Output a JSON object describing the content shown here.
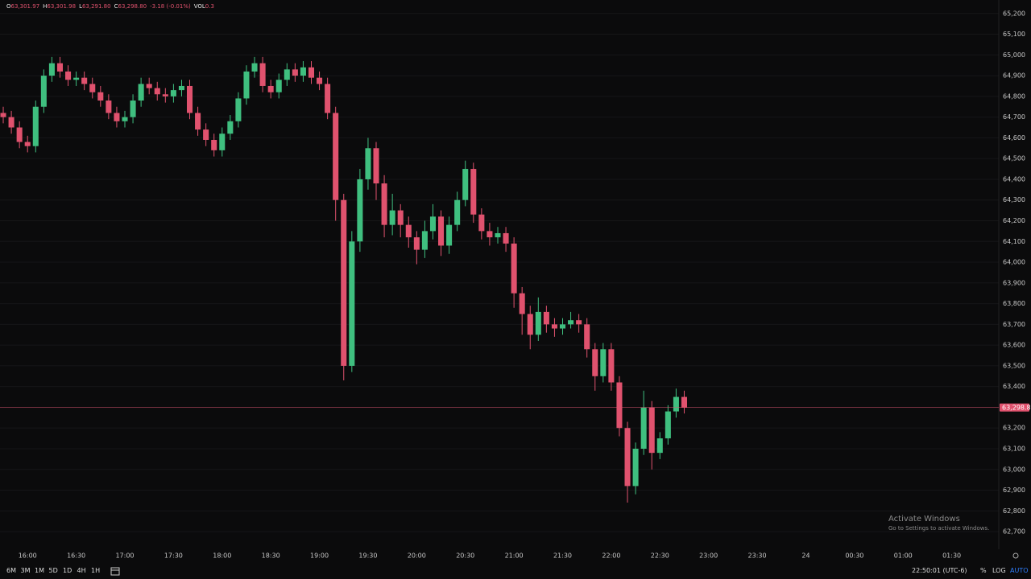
{
  "header": [
    {
      "key": "O",
      "value": "63,301.97"
    },
    {
      "key": "H",
      "value": "63,301.98"
    },
    {
      "key": "L",
      "value": "63,291.80"
    },
    {
      "key": "C",
      "value": "63,298.80"
    },
    {
      "key": "",
      "value": "-3.18 (-0.01%)"
    },
    {
      "key": "VOL",
      "value": "0.3"
    }
  ],
  "toolbar": {
    "ranges": [
      "6M",
      "3M",
      "1M",
      "5D",
      "1D",
      "4H",
      "1H"
    ],
    "clock": "22:50:01 (UTC-6)",
    "options": [
      "%",
      "LOG",
      "AUTO"
    ]
  },
  "watermark": {
    "title": "Activate Windows",
    "subtitle": "Go to Settings to activate Windows."
  },
  "chart_data": {
    "type": "candlestick",
    "up_color": "#3fbf7f",
    "down_color": "#e0526e",
    "grid": true,
    "last_price": {
      "value": 63298.8,
      "label": "63,298.80"
    },
    "xlim": [
      943,
      1559
    ],
    "ylim": [
      62615,
      65265
    ],
    "xticks": [
      {
        "value": 960,
        "label": "16:00"
      },
      {
        "value": 990,
        "label": "16:30"
      },
      {
        "value": 1020,
        "label": "17:00"
      },
      {
        "value": 1050,
        "label": "17:30"
      },
      {
        "value": 1080,
        "label": "18:00"
      },
      {
        "value": 1110,
        "label": "18:30"
      },
      {
        "value": 1140,
        "label": "19:00"
      },
      {
        "value": 1170,
        "label": "19:30"
      },
      {
        "value": 1200,
        "label": "20:00"
      },
      {
        "value": 1230,
        "label": "20:30"
      },
      {
        "value": 1260,
        "label": "21:00"
      },
      {
        "value": 1290,
        "label": "21:30"
      },
      {
        "value": 1320,
        "label": "22:00"
      },
      {
        "value": 1350,
        "label": "22:30"
      },
      {
        "value": 1380,
        "label": "23:00"
      },
      {
        "value": 1410,
        "label": "23:30"
      },
      {
        "value": 1440,
        "label": "24"
      },
      {
        "value": 1470,
        "label": "00:30"
      },
      {
        "value": 1500,
        "label": "01:00"
      },
      {
        "value": 1530,
        "label": "01:30"
      }
    ],
    "yticks": [
      {
        "value": 62700,
        "label": "62,700"
      },
      {
        "value": 62800,
        "label": "62,800"
      },
      {
        "value": 62900,
        "label": "62,900"
      },
      {
        "value": 63000,
        "label": "63,000"
      },
      {
        "value": 63100,
        "label": "63,100"
      },
      {
        "value": 63200,
        "label": "63,200"
      },
      {
        "value": 63300,
        "label": "63,300"
      },
      {
        "value": 63400,
        "label": "63,400"
      },
      {
        "value": 63500,
        "label": "63,500"
      },
      {
        "value": 63600,
        "label": "63,600"
      },
      {
        "value": 63700,
        "label": "63,700"
      },
      {
        "value": 63800,
        "label": "63,800"
      },
      {
        "value": 63900,
        "label": "63,900"
      },
      {
        "value": 64000,
        "label": "64,000"
      },
      {
        "value": 64100,
        "label": "64,100"
      },
      {
        "value": 64200,
        "label": "64,200"
      },
      {
        "value": 64300,
        "label": "64,300"
      },
      {
        "value": 64400,
        "label": "64,400"
      },
      {
        "value": 64500,
        "label": "64,500"
      },
      {
        "value": 64600,
        "label": "64,600"
      },
      {
        "value": 64700,
        "label": "64,700"
      },
      {
        "value": 64800,
        "label": "64,800"
      },
      {
        "value": 64900,
        "label": "64,900"
      },
      {
        "value": 65000,
        "label": "65,000"
      },
      {
        "value": 65100,
        "label": "65,100"
      },
      {
        "value": 65200,
        "label": "65,200"
      }
    ],
    "x": [
      945,
      950,
      955,
      960,
      965,
      970,
      975,
      980,
      985,
      990,
      995,
      1000,
      1005,
      1010,
      1015,
      1020,
      1025,
      1030,
      1035,
      1040,
      1045,
      1050,
      1055,
      1060,
      1065,
      1070,
      1075,
      1080,
      1085,
      1090,
      1095,
      1100,
      1105,
      1110,
      1115,
      1120,
      1125,
      1130,
      1135,
      1140,
      1145,
      1150,
      1155,
      1160,
      1165,
      1170,
      1175,
      1180,
      1185,
      1190,
      1195,
      1200,
      1205,
      1210,
      1215,
      1220,
      1225,
      1230,
      1235,
      1240,
      1245,
      1250,
      1255,
      1260,
      1265,
      1270,
      1275,
      1280,
      1285,
      1290,
      1295,
      1300,
      1305,
      1310,
      1315,
      1320,
      1325,
      1330,
      1335,
      1340,
      1345,
      1350,
      1355,
      1360,
      1365
    ],
    "open": [
      64720,
      64700,
      64650,
      64580,
      64560,
      64750,
      64900,
      64960,
      64920,
      64880,
      64890,
      64860,
      64820,
      64780,
      64720,
      64680,
      64700,
      64780,
      64860,
      64840,
      64810,
      64800,
      64830,
      64850,
      64720,
      64640,
      64590,
      64540,
      64620,
      64680,
      64790,
      64920,
      64960,
      64850,
      64820,
      64880,
      64930,
      64900,
      64940,
      64890,
      64860,
      64720,
      64300,
      63500,
      64100,
      64400,
      64550,
      64380,
      64180,
      64250,
      64180,
      64120,
      64060,
      64150,
      64220,
      64080,
      64180,
      64300,
      64450,
      64230,
      64150,
      64120,
      64140,
      64090,
      63850,
      63750,
      63650,
      63760,
      63700,
      63680,
      63700,
      63720,
      63700,
      63580,
      63450,
      63580,
      63420,
      63200,
      62920,
      63100,
      63300,
      63080,
      63150,
      63280,
      63350
    ],
    "high": [
      64750,
      64730,
      64680,
      64610,
      64780,
      64930,
      64990,
      64990,
      64950,
      64920,
      64920,
      64890,
      64850,
      64810,
      64750,
      64730,
      64810,
      64890,
      64890,
      64870,
      64840,
      64860,
      64880,
      64880,
      64750,
      64670,
      64620,
      64650,
      64710,
      64820,
      64950,
      64990,
      64990,
      64880,
      64910,
      64960,
      64960,
      64970,
      64970,
      64920,
      64890,
      64750,
      64330,
      64150,
      64450,
      64600,
      64580,
      64420,
      64330,
      64280,
      64220,
      64150,
      64200,
      64280,
      64250,
      64220,
      64340,
      64490,
      64480,
      64260,
      64190,
      64170,
      64170,
      64120,
      63880,
      63790,
      63830,
      63790,
      63730,
      63730,
      63760,
      63750,
      63730,
      63610,
      63610,
      63610,
      63450,
      63230,
      63130,
      63380,
      63330,
      63180,
      63310,
      63390,
      63380
    ],
    "low": [
      64670,
      64620,
      64550,
      64530,
      64530,
      64720,
      64870,
      64890,
      64850,
      64850,
      64830,
      64790,
      64750,
      64690,
      64650,
      64650,
      64670,
      64750,
      64810,
      64780,
      64770,
      64770,
      64800,
      64690,
      64610,
      64560,
      64510,
      64510,
      64590,
      64650,
      64760,
      64890,
      64820,
      64790,
      64790,
      64850,
      64870,
      64870,
      64860,
      64830,
      64690,
      64200,
      63430,
      63470,
      64050,
      64350,
      64300,
      64120,
      64130,
      64120,
      64070,
      63990,
      64020,
      64110,
      64030,
      64040,
      64150,
      64270,
      64190,
      64110,
      64080,
      64090,
      64050,
      63780,
      63650,
      63580,
      63620,
      63660,
      63640,
      63650,
      63680,
      63660,
      63540,
      63380,
      63420,
      63380,
      63160,
      62840,
      62880,
      63070,
      63000,
      63050,
      63120,
      63250,
      63270
    ],
    "close": [
      64700,
      64650,
      64580,
      64560,
      64750,
      64900,
      64960,
      64920,
      64880,
      64890,
      64860,
      64820,
      64780,
      64720,
      64680,
      64700,
      64780,
      64860,
      64840,
      64810,
      64800,
      64830,
      64850,
      64720,
      64640,
      64590,
      64540,
      64620,
      64680,
      64790,
      64920,
      64960,
      64850,
      64820,
      64880,
      64930,
      64900,
      64940,
      64890,
      64860,
      64720,
      64300,
      63500,
      64100,
      64400,
      64550,
      64380,
      64180,
      64250,
      64180,
      64120,
      64060,
      64150,
      64220,
      64080,
      64180,
      64300,
      64450,
      64230,
      64150,
      64120,
      64140,
      64090,
      63850,
      63750,
      63650,
      63760,
      63700,
      63680,
      63700,
      63720,
      63700,
      63580,
      63450,
      63580,
      63420,
      63200,
      62920,
      63100,
      63300,
      63080,
      63150,
      63280,
      63350,
      63298.8
    ]
  }
}
